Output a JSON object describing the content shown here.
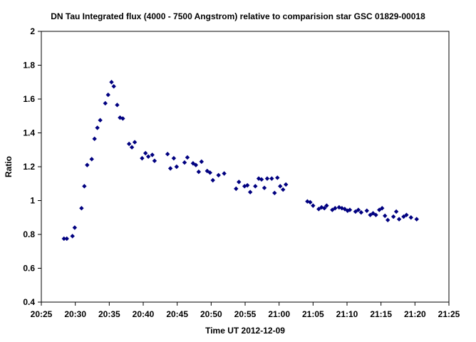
{
  "chart_data": {
    "type": "scatter",
    "title": "DN Tau Integrated flux (4000  - 7500 Angstrom) relative to comparision star  GSC 01829-00018",
    "xlabel": "Time UT   2012-12-09",
    "ylabel": "Ratio",
    "x_ticks": [
      "20:25",
      "20:30",
      "20:35",
      "20:40",
      "20:45",
      "20:50",
      "20:55",
      "21:00",
      "21:05",
      "21:10",
      "21:15",
      "21:20",
      "21:25"
    ],
    "y_ticks": [
      "0.4",
      "0.6",
      "0.8",
      "1",
      "1.2",
      "1.4",
      "1.6",
      "1.8",
      "2"
    ],
    "xlim": [
      "20:25",
      "21:25"
    ],
    "ylim": [
      0.4,
      2.0
    ],
    "grid": false,
    "legend": "none",
    "marker": "diamond",
    "marker_color": "#000080",
    "points": [
      [
        "20:28:20",
        0.775
      ],
      [
        "20:28:45",
        0.775
      ],
      [
        "20:29:35",
        0.79
      ],
      [
        "20:29:55",
        0.84
      ],
      [
        "20:30:55",
        0.955
      ],
      [
        "20:31:20",
        1.085
      ],
      [
        "20:31:45",
        1.21
      ],
      [
        "20:32:25",
        1.245
      ],
      [
        "20:32:50",
        1.365
      ],
      [
        "20:33:15",
        1.43
      ],
      [
        "20:33:40",
        1.475
      ],
      [
        "20:34:25",
        1.575
      ],
      [
        "20:34:50",
        1.625
      ],
      [
        "20:35:20",
        1.7
      ],
      [
        "20:35:40",
        1.675
      ],
      [
        "20:36:10",
        1.565
      ],
      [
        "20:36:35",
        1.49
      ],
      [
        "20:37:00",
        1.485
      ],
      [
        "20:37:55",
        1.335
      ],
      [
        "20:38:20",
        1.315
      ],
      [
        "20:38:45",
        1.345
      ],
      [
        "20:39:50",
        1.25
      ],
      [
        "20:40:20",
        1.28
      ],
      [
        "20:40:45",
        1.26
      ],
      [
        "20:41:20",
        1.27
      ],
      [
        "20:41:40",
        1.235
      ],
      [
        "20:43:35",
        1.275
      ],
      [
        "20:44:00",
        1.19
      ],
      [
        "20:44:30",
        1.25
      ],
      [
        "20:44:55",
        1.2
      ],
      [
        "20:46:05",
        1.225
      ],
      [
        "20:46:30",
        1.255
      ],
      [
        "20:47:20",
        1.22
      ],
      [
        "20:47:45",
        1.21
      ],
      [
        "20:48:10",
        1.17
      ],
      [
        "20:48:35",
        1.23
      ],
      [
        "20:49:25",
        1.175
      ],
      [
        "20:49:50",
        1.165
      ],
      [
        "20:50:15",
        1.12
      ],
      [
        "20:51:05",
        1.15
      ],
      [
        "20:51:55",
        1.16
      ],
      [
        "20:53:40",
        1.07
      ],
      [
        "20:54:05",
        1.11
      ],
      [
        "20:54:55",
        1.085
      ],
      [
        "20:55:20",
        1.09
      ],
      [
        "20:55:45",
        1.05
      ],
      [
        "20:56:30",
        1.085
      ],
      [
        "20:57:00",
        1.13
      ],
      [
        "20:57:25",
        1.125
      ],
      [
        "20:57:50",
        1.075
      ],
      [
        "20:58:15",
        1.13
      ],
      [
        "20:58:55",
        1.13
      ],
      [
        "20:59:20",
        1.045
      ],
      [
        "20:59:45",
        1.135
      ],
      [
        "21:00:10",
        1.085
      ],
      [
        "21:00:35",
        1.065
      ],
      [
        "21:01:00",
        1.095
      ],
      [
        "21:04:10",
        0.995
      ],
      [
        "21:04:35",
        0.99
      ],
      [
        "21:05:00",
        0.97
      ],
      [
        "21:05:50",
        0.95
      ],
      [
        "21:06:15",
        0.96
      ],
      [
        "21:06:40",
        0.955
      ],
      [
        "21:07:00",
        0.97
      ],
      [
        "21:07:50",
        0.945
      ],
      [
        "21:08:15",
        0.955
      ],
      [
        "21:08:50",
        0.96
      ],
      [
        "21:09:15",
        0.955
      ],
      [
        "21:09:40",
        0.95
      ],
      [
        "21:10:05",
        0.94
      ],
      [
        "21:10:25",
        0.945
      ],
      [
        "21:11:15",
        0.935
      ],
      [
        "21:11:40",
        0.945
      ],
      [
        "21:12:05",
        0.93
      ],
      [
        "21:12:55",
        0.94
      ],
      [
        "21:13:25",
        0.915
      ],
      [
        "21:13:50",
        0.925
      ],
      [
        "21:14:15",
        0.915
      ],
      [
        "21:14:45",
        0.945
      ],
      [
        "21:15:10",
        0.955
      ],
      [
        "21:15:35",
        0.91
      ],
      [
        "21:16:00",
        0.885
      ],
      [
        "21:16:50",
        0.905
      ],
      [
        "21:17:15",
        0.935
      ],
      [
        "21:17:40",
        0.89
      ],
      [
        "21:18:20",
        0.905
      ],
      [
        "21:18:45",
        0.915
      ],
      [
        "21:19:25",
        0.9
      ],
      [
        "21:20:15",
        0.89
      ]
    ]
  }
}
